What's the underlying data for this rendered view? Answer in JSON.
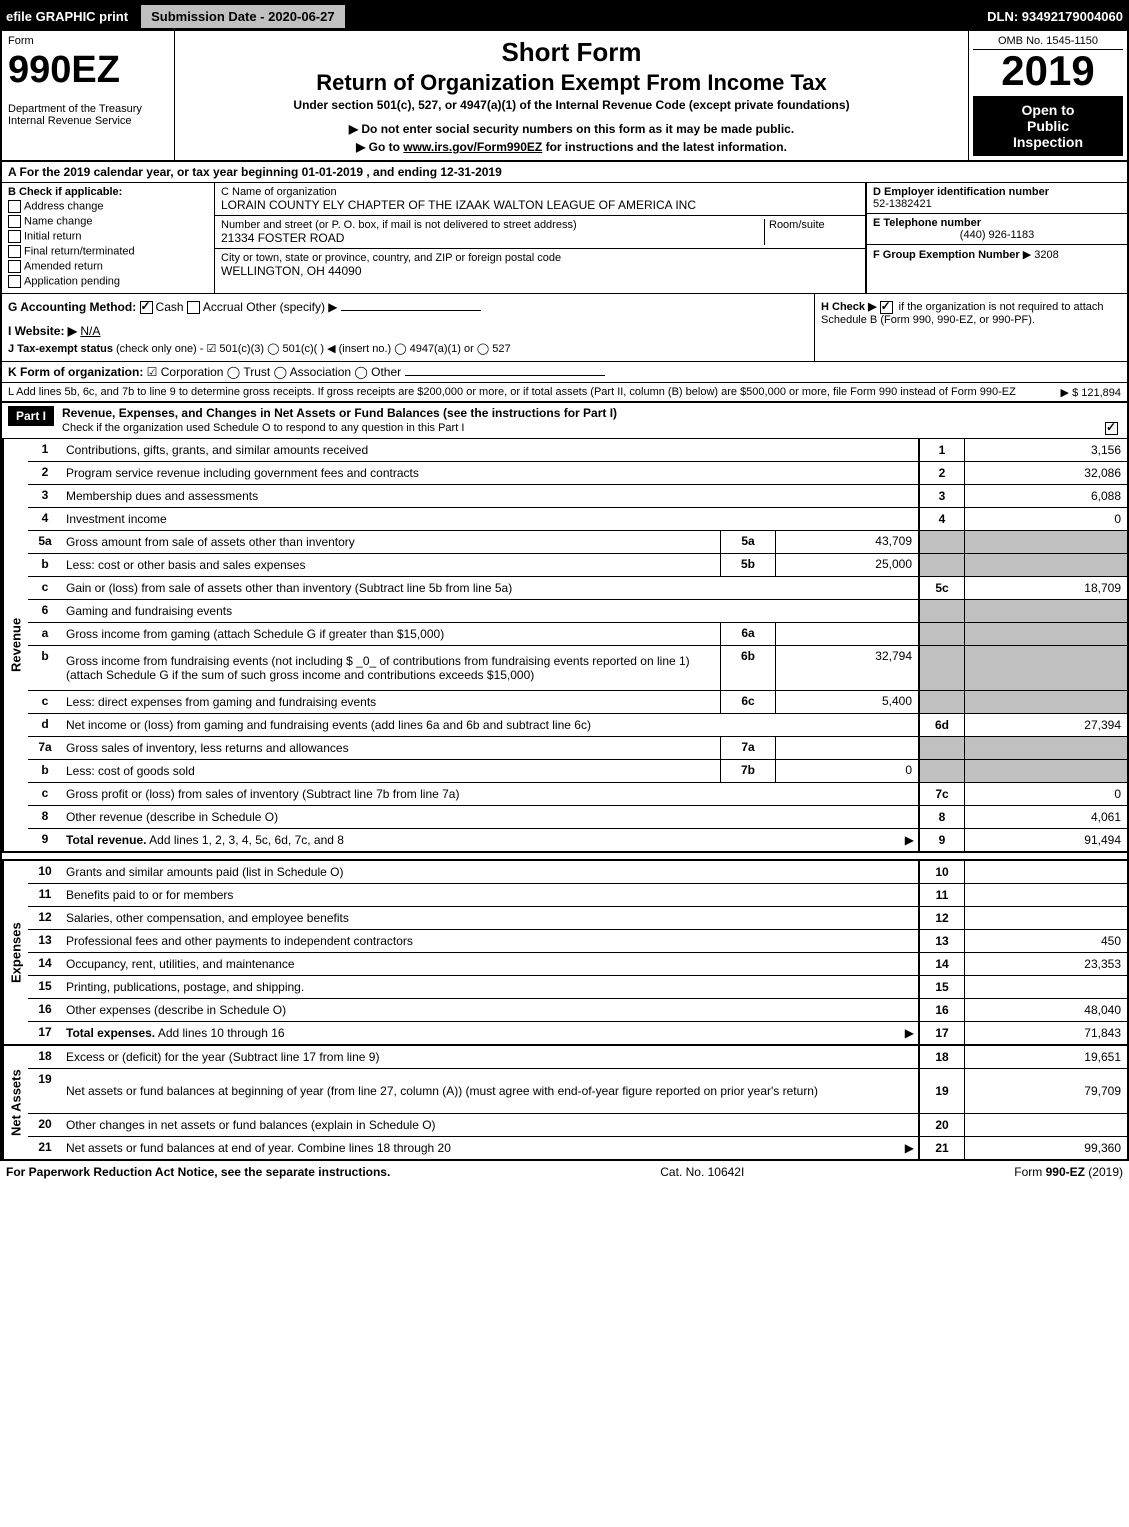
{
  "top": {
    "efile_label": "efile GRAPHIC print",
    "submission_label": "Submission Date - 2020-06-27",
    "dln": "DLN: 93492179004060"
  },
  "header": {
    "form_label": "Form",
    "form_number": "990EZ",
    "dept1": "Department of the Treasury",
    "dept2": "Internal Revenue Service",
    "title1": "Short Form",
    "title2": "Return of Organization Exempt From Income Tax",
    "subtitle": "Under section 501(c), 527, or 4947(a)(1) of the Internal Revenue Code (except private foundations)",
    "warn": "▶ Do not enter social security numbers on this form as it may be made public.",
    "goto": "▶ Go to www.irs.gov/Form990EZ for instructions and the latest information.",
    "omb": "OMB No. 1545-1150",
    "year": "2019",
    "public1": "Open to",
    "public2": "Public",
    "public3": "Inspection"
  },
  "info": {
    "period": "A  For the 2019 calendar year, or tax year beginning 01-01-2019 , and ending 12-31-2019",
    "b_label": "B  Check if applicable:",
    "b_opts": [
      "Address change",
      "Name change",
      "Initial return",
      "Final return/terminated",
      "Amended return",
      "Application pending"
    ],
    "c_label": "C Name of organization",
    "c_name": "LORAIN COUNTY ELY CHAPTER OF THE IZAAK WALTON LEAGUE OF AMERICA INC",
    "addr_label": "Number and street (or P. O. box, if mail is not delivered to street address)",
    "room_label": "Room/suite",
    "addr": "21334 FOSTER ROAD",
    "city_label": "City or town, state or province, country, and ZIP or foreign postal code",
    "city": "WELLINGTON, OH  44090",
    "d_label": "D Employer identification number",
    "d_val": "52-1382421",
    "e_label": "E Telephone number",
    "e_val": "(440) 926-1183",
    "f_label": "F Group Exemption Number",
    "f_val": "▶ 3208",
    "g_label": "G Accounting Method:",
    "g_cash": "Cash",
    "g_accrual": "Accrual",
    "g_other": "Other (specify) ▶",
    "h_label": "H  Check ▶",
    "h_text": "if the organization is not required to attach Schedule B (Form 990, 990-EZ, or 990-PF).",
    "i_label": "I Website: ▶",
    "i_val": "N/A",
    "j_label": "J Tax-exempt status",
    "j_text": "(check only one) -  ☑ 501(c)(3)  ◯ 501(c)(  ) ◀ (insert no.)  ◯ 4947(a)(1) or  ◯ 527",
    "k_label": "K Form of organization:",
    "k_text": "☑ Corporation  ◯ Trust  ◯ Association  ◯ Other",
    "l_text": "L Add lines 5b, 6c, and 7b to line 9 to determine gross receipts. If gross receipts are $200,000 or more, or if total assets (Part II, column (B) below) are $500,000 or more, file Form 990 instead of Form 990-EZ",
    "l_amount": "▶ $ 121,894"
  },
  "part1": {
    "label": "Part I",
    "title": "Revenue, Expenses, and Changes in Net Assets or Fund Balances (see the instructions for Part I)",
    "check_text": "Check if the organization used Schedule O to respond to any question in this Part I"
  },
  "sections": {
    "revenue": "Revenue",
    "expenses": "Expenses",
    "netassets": "Net Assets"
  },
  "lines": [
    {
      "n": "1",
      "desc": "Contributions, gifts, grants, and similar amounts received",
      "rnum": "1",
      "rval": "3,156"
    },
    {
      "n": "2",
      "desc": "Program service revenue including government fees and contracts",
      "rnum": "2",
      "rval": "32,086"
    },
    {
      "n": "3",
      "desc": "Membership dues and assessments",
      "rnum": "3",
      "rval": "6,088"
    },
    {
      "n": "4",
      "desc": "Investment income",
      "rnum": "4",
      "rval": "0"
    },
    {
      "n": "5a",
      "desc": "Gross amount from sale of assets other than inventory",
      "sub": "5a",
      "subval": "43,709",
      "shade": true
    },
    {
      "n": "b",
      "desc": "Less: cost or other basis and sales expenses",
      "sub": "5b",
      "subval": "25,000",
      "shade": true
    },
    {
      "n": "c",
      "desc": "Gain or (loss) from sale of assets other than inventory (Subtract line 5b from line 5a)",
      "rnum": "5c",
      "rval": "18,709"
    },
    {
      "n": "6",
      "desc": "Gaming and fundraising events",
      "shade": true,
      "noborder": true
    },
    {
      "n": "a",
      "desc": "Gross income from gaming (attach Schedule G if greater than $15,000)",
      "sub": "6a",
      "subval": "",
      "shade": true
    },
    {
      "n": "b",
      "desc": "Gross income from fundraising events (not including $ _0_ of contributions from fundraising events reported on line 1) (attach Schedule G if the sum of such gross income and contributions exceeds $15,000)",
      "sub": "6b",
      "subval": "32,794",
      "shade": true,
      "tall": true
    },
    {
      "n": "c",
      "desc": "Less: direct expenses from gaming and fundraising events",
      "sub": "6c",
      "subval": "5,400",
      "shade": true
    },
    {
      "n": "d",
      "desc": "Net income or (loss) from gaming and fundraising events (add lines 6a and 6b and subtract line 6c)",
      "rnum": "6d",
      "rval": "27,394"
    },
    {
      "n": "7a",
      "desc": "Gross sales of inventory, less returns and allowances",
      "sub": "7a",
      "subval": "",
      "shade": true
    },
    {
      "n": "b",
      "desc": "Less: cost of goods sold",
      "sub": "7b",
      "subval": "0",
      "shade": true
    },
    {
      "n": "c",
      "desc": "Gross profit or (loss) from sales of inventory (Subtract line 7b from line 7a)",
      "rnum": "7c",
      "rval": "0"
    },
    {
      "n": "8",
      "desc": "Other revenue (describe in Schedule O)",
      "rnum": "8",
      "rval": "4,061"
    },
    {
      "n": "9",
      "desc": "Total revenue. Add lines 1, 2, 3, 4, 5c, 6d, 7c, and 8",
      "rnum": "9",
      "rval": "91,494",
      "bold": true,
      "arrow": true
    }
  ],
  "explines": [
    {
      "n": "10",
      "desc": "Grants and similar amounts paid (list in Schedule O)",
      "rnum": "10",
      "rval": ""
    },
    {
      "n": "11",
      "desc": "Benefits paid to or for members",
      "rnum": "11",
      "rval": ""
    },
    {
      "n": "12",
      "desc": "Salaries, other compensation, and employee benefits",
      "rnum": "12",
      "rval": ""
    },
    {
      "n": "13",
      "desc": "Professional fees and other payments to independent contractors",
      "rnum": "13",
      "rval": "450"
    },
    {
      "n": "14",
      "desc": "Occupancy, rent, utilities, and maintenance",
      "rnum": "14",
      "rval": "23,353"
    },
    {
      "n": "15",
      "desc": "Printing, publications, postage, and shipping.",
      "rnum": "15",
      "rval": ""
    },
    {
      "n": "16",
      "desc": "Other expenses (describe in Schedule O)",
      "rnum": "16",
      "rval": "48,040"
    },
    {
      "n": "17",
      "desc": "Total expenses. Add lines 10 through 16",
      "rnum": "17",
      "rval": "71,843",
      "bold": true,
      "arrow": true
    }
  ],
  "nalines": [
    {
      "n": "18",
      "desc": "Excess or (deficit) for the year (Subtract line 17 from line 9)",
      "rnum": "18",
      "rval": "19,651"
    },
    {
      "n": "19",
      "desc": "Net assets or fund balances at beginning of year (from line 27, column (A)) (must agree with end-of-year figure reported on prior year's return)",
      "rnum": "19",
      "rval": "79,709",
      "tall": true
    },
    {
      "n": "20",
      "desc": "Other changes in net assets or fund balances (explain in Schedule O)",
      "rnum": "20",
      "rval": ""
    },
    {
      "n": "21",
      "desc": "Net assets or fund balances at end of year. Combine lines 18 through 20",
      "rnum": "21",
      "rval": "99,360",
      "arrow": true
    }
  ],
  "footer": {
    "left": "For Paperwork Reduction Act Notice, see the separate instructions.",
    "center": "Cat. No. 10642I",
    "right": "Form 990-EZ (2019)"
  }
}
